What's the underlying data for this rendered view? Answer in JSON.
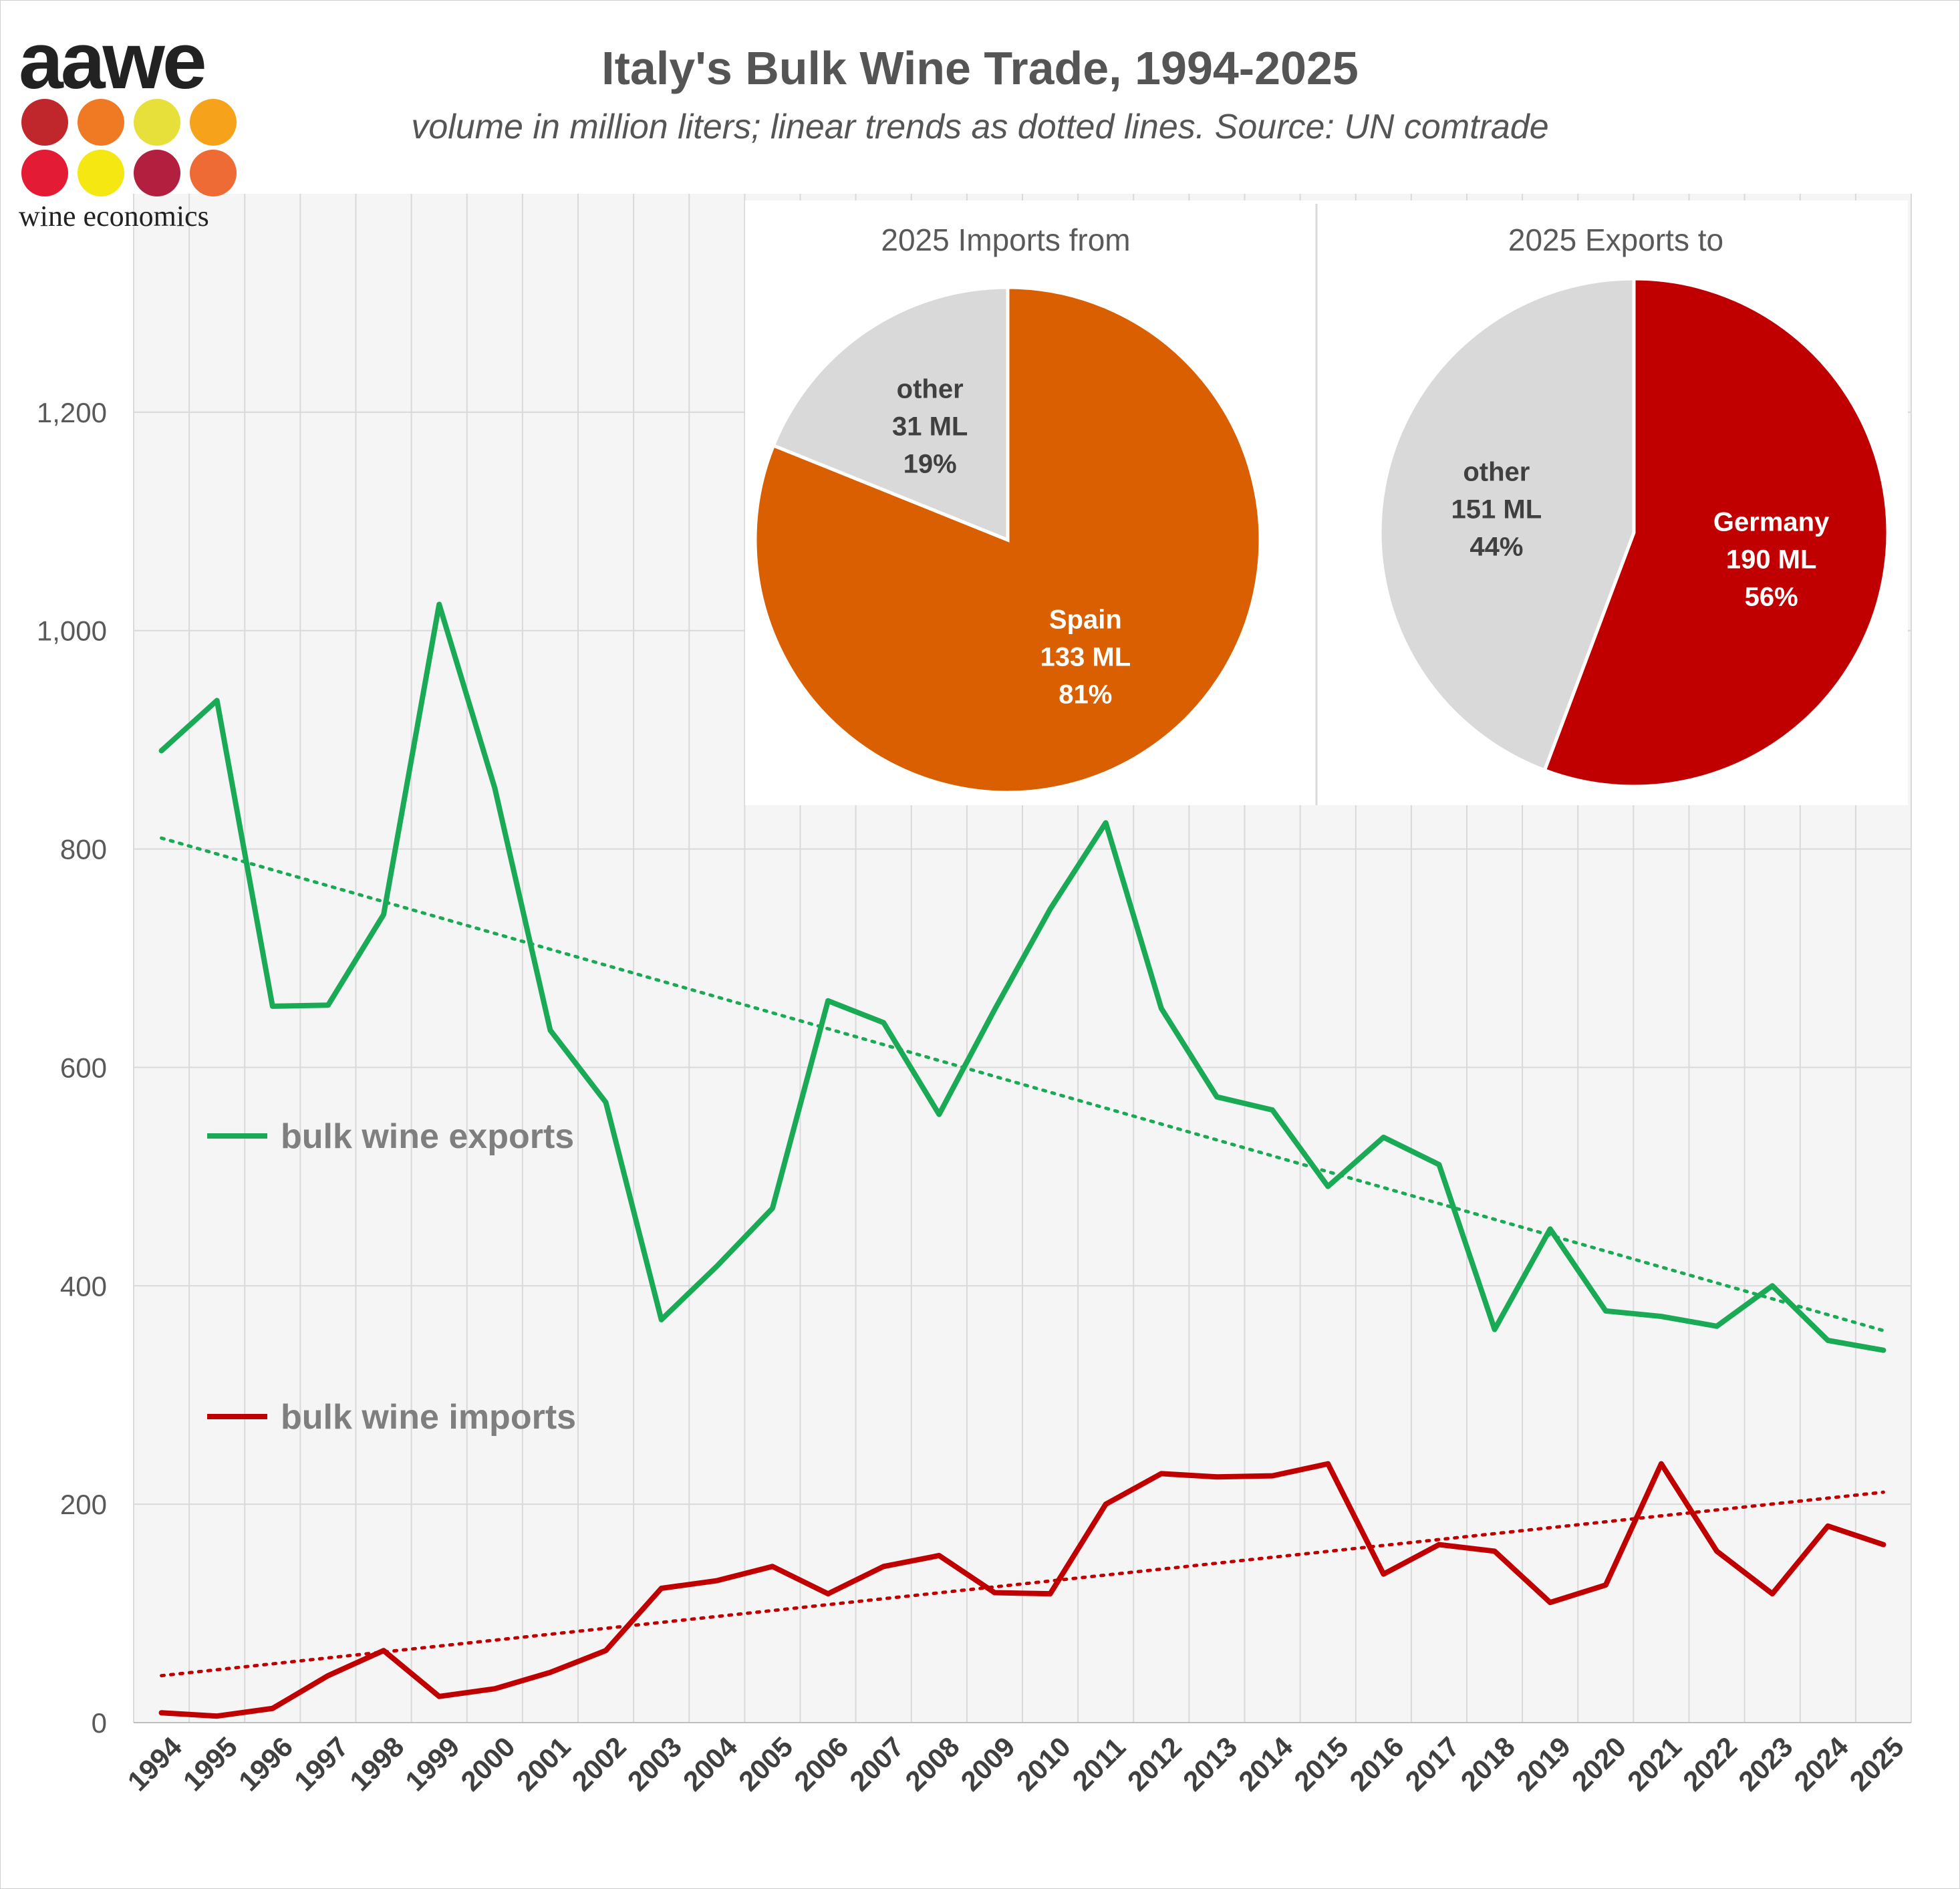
{
  "title": "Italy's Bulk Wine Trade, 1994-2025",
  "subtitle": "volume in million liters; linear trends as dotted lines. Source: UN comtrade",
  "logo": {
    "word": "aawe",
    "tagline": "wine economics",
    "dot_colors": [
      "#c0272d",
      "#f07a24",
      "#e8e03a",
      "#f7a21b",
      "#e31b35",
      "#f5e812",
      "#b3203f",
      "#ee6b36"
    ]
  },
  "colors": {
    "exports": "#1aaa55",
    "imports": "#c00000",
    "plot_background": "#f5f5f5",
    "grid": "#d9d9d9",
    "axis_text": "#595959",
    "spain": "#d95f00",
    "germany": "#c00000",
    "other": "#d9d9d9"
  },
  "chart_data": [
    {
      "type": "line",
      "x": [
        1994,
        1995,
        1996,
        1997,
        1998,
        1999,
        2000,
        2001,
        2002,
        2003,
        2004,
        2005,
        2006,
        2007,
        2008,
        2009,
        2010,
        2011,
        2012,
        2013,
        2014,
        2015,
        2016,
        2017,
        2018,
        2019,
        2020,
        2021,
        2022,
        2023,
        2024,
        2025
      ],
      "ylim": [
        0,
        1400
      ],
      "yticks": [
        0,
        200,
        400,
        600,
        800,
        1000,
        1200
      ],
      "ytick_labels": [
        "0",
        "200",
        "400",
        "600",
        "800",
        "1,000",
        "1,200"
      ],
      "grid": true,
      "series": [
        {
          "name": "bulk wine exports",
          "values": [
            890,
            936,
            656,
            657,
            740,
            1024,
            856,
            634,
            568,
            369,
            418,
            471,
            661,
            641,
            557,
            653,
            745,
            824,
            654,
            573,
            561,
            491,
            536,
            511,
            360,
            452,
            377,
            372,
            363,
            400,
            350,
            341
          ],
          "trend": [
            810,
            359
          ]
        },
        {
          "name": "bulk wine imports",
          "values": [
            9,
            6,
            13,
            43,
            66,
            24,
            31,
            46,
            66,
            123,
            130,
            143,
            118,
            143,
            153,
            119,
            118,
            200,
            228,
            225,
            226,
            237,
            136,
            163,
            157,
            110,
            126,
            237,
            157,
            118,
            180,
            163
          ],
          "trend": [
            43,
            211
          ]
        }
      ]
    },
    {
      "type": "pie",
      "title": "2025 Imports from",
      "slices": [
        {
          "label": "Spain",
          "value": 133,
          "value_label": "133 ML",
          "percent_label": "81%"
        },
        {
          "label": "other",
          "value": 31,
          "value_label": "31 ML",
          "percent_label": "19%"
        }
      ]
    },
    {
      "type": "pie",
      "title": "2025 Exports to",
      "slices": [
        {
          "label": "Germany",
          "value": 190,
          "value_label": "190 ML",
          "percent_label": "56%"
        },
        {
          "label": "other",
          "value": 151,
          "value_label": "151 ML",
          "percent_label": "44%"
        }
      ]
    }
  ]
}
